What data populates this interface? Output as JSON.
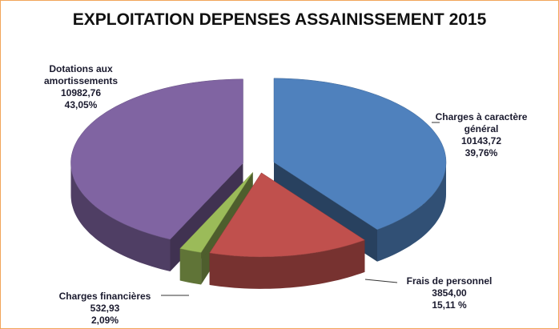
{
  "chart_data": {
    "type": "pie3d",
    "title": "EXPLOITATION DEPENSES ASSAINISSEMENT 2015",
    "categories": [
      "Charges à caractère général",
      "Frais de personnel",
      "Charges financières",
      "Dotations aux amortissements"
    ],
    "values": [
      10143.72,
      3854.0,
      532.93,
      10982.76
    ],
    "value_labels": [
      "10143,72",
      "3854,00",
      "532,93",
      "10982,76"
    ],
    "percents": [
      39.76,
      15.11,
      2.09,
      43.05
    ],
    "percent_labels": [
      "39,76%",
      "15,11 %",
      "2,09%",
      "43,05%"
    ],
    "colors": [
      "#4f81bd",
      "#c0504d",
      "#9bbb59",
      "#8064a2"
    ]
  }
}
